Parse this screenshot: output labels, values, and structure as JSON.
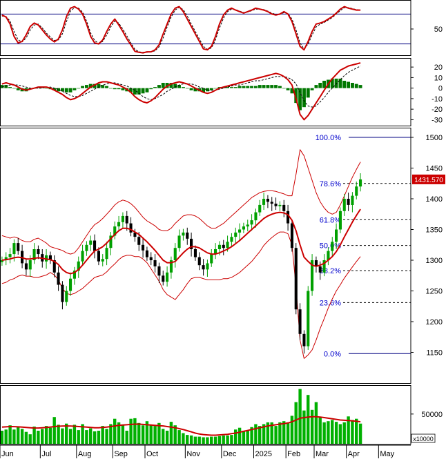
{
  "chart_data": [
    {
      "panel": "stochastic",
      "type": "line",
      "ylim": [
        0,
        100
      ],
      "tick_labels": [
        "50"
      ],
      "tick_values": [
        50
      ],
      "reference_levels": [
        80,
        20
      ],
      "series": [
        {
          "values": [
            78,
            74,
            60,
            35,
            22,
            25,
            38,
            55,
            62,
            58,
            48,
            38,
            30,
            24,
            30,
            48,
            75,
            92,
            95,
            90,
            80,
            60,
            35,
            22,
            20,
            28,
            45,
            60,
            70,
            58,
            45,
            30,
            18,
            5,
            3,
            2,
            4,
            4,
            8,
            18,
            40,
            60,
            80,
            92,
            95,
            85,
            70,
            55,
            40,
            25,
            10,
            8,
            15,
            35,
            60,
            78,
            88,
            92,
            88,
            85,
            82,
            85,
            88,
            92,
            90,
            88,
            85,
            80,
            78,
            80,
            85,
            80,
            65,
            40,
            15,
            8,
            25,
            45,
            60,
            62,
            65,
            70,
            75,
            82,
            90,
            95,
            92,
            90,
            88,
            88
          ]
        },
        {
          "values": [
            76,
            75,
            66,
            45,
            28,
            24,
            32,
            48,
            58,
            60,
            52,
            42,
            34,
            27,
            28,
            40,
            65,
            86,
            93,
            92,
            84,
            66,
            42,
            27,
            21,
            25,
            38,
            54,
            66,
            62,
            50,
            36,
            22,
            9,
            4,
            3,
            3,
            4,
            6,
            14,
            32,
            54,
            74,
            88,
            94,
            89,
            76,
            60,
            45,
            30,
            15,
            9,
            12,
            28,
            52,
            72,
            85,
            90,
            89,
            86,
            83,
            84,
            87,
            90,
            90,
            89,
            86,
            82,
            79,
            79,
            83,
            81,
            70,
            48,
            22,
            10,
            20,
            38,
            54,
            60,
            63,
            68,
            73,
            80,
            87,
            93,
            93,
            91,
            89,
            88
          ]
        }
      ]
    },
    {
      "panel": "macd",
      "type": "line",
      "ylim": [
        -33,
        26
      ],
      "tick_labels": [
        "20",
        "10",
        "0",
        "-10",
        "-20",
        "-30"
      ],
      "tick_values": [
        20,
        10,
        0,
        -10,
        -20,
        -30
      ],
      "series": [
        {
          "values": [
            4,
            5,
            4,
            3,
            1,
            -1,
            -2,
            -1,
            0,
            1,
            1,
            1,
            0,
            -2,
            -4,
            -6,
            -9,
            -11,
            -10,
            -8,
            -5,
            -2,
            1,
            3,
            5,
            6,
            6,
            5,
            4,
            3,
            1,
            -1,
            -4,
            -8,
            -11,
            -13,
            -14,
            -12,
            -9,
            -5,
            -1,
            2,
            4,
            5,
            6,
            5,
            4,
            2,
            0,
            -2,
            -4,
            -5,
            -4,
            -2,
            0,
            1,
            2,
            3,
            4,
            5,
            6,
            7,
            8,
            9,
            10,
            11,
            12,
            13,
            14,
            13,
            11,
            8,
            3,
            -10,
            -25,
            -30,
            -26,
            -20,
            -14,
            -8,
            -2,
            4,
            9,
            13,
            17,
            19,
            21,
            22,
            23,
            24
          ]
        },
        {
          "values": [
            1,
            2,
            3,
            3,
            3,
            2,
            1,
            0,
            0,
            0,
            0,
            1,
            1,
            0,
            -1,
            -3,
            -5,
            -7,
            -8,
            -8,
            -7,
            -5,
            -3,
            -1,
            1,
            3,
            4,
            5,
            5,
            4,
            3,
            2,
            0,
            -2,
            -5,
            -8,
            -10,
            -11,
            -10,
            -8,
            -6,
            -3,
            -1,
            1,
            3,
            4,
            4,
            4,
            3,
            1,
            0,
            -2,
            -2,
            -2,
            -1,
            0,
            1,
            2,
            3,
            3,
            4,
            5,
            6,
            7,
            7,
            8,
            9,
            10,
            11,
            11,
            11,
            10,
            8,
            4,
            -4,
            -12,
            -17,
            -18,
            -17,
            -13,
            -9,
            -4,
            0,
            4,
            8,
            12,
            15,
            17,
            19,
            21
          ]
        }
      ],
      "histogram": [
        3,
        3,
        1,
        0,
        -2,
        -3,
        -3,
        -1,
        0,
        1,
        1,
        0,
        -1,
        -2,
        -3,
        -3,
        -4,
        -4,
        -2,
        0,
        2,
        3,
        4,
        4,
        4,
        3,
        2,
        0,
        -1,
        -1,
        -2,
        -3,
        -4,
        -6,
        -6,
        -5,
        -4,
        -1,
        1,
        3,
        5,
        5,
        5,
        4,
        3,
        1,
        0,
        -2,
        -3,
        -3,
        -4,
        -3,
        -2,
        0,
        1,
        1,
        1,
        1,
        1,
        2,
        2,
        2,
        2,
        2,
        3,
        3,
        3,
        3,
        3,
        2,
        0,
        -2,
        -5,
        -14,
        -21,
        -18,
        -9,
        -2,
        3,
        5,
        7,
        8,
        9,
        9,
        9,
        7,
        6,
        5,
        4,
        3
      ]
    },
    {
      "panel": "price",
      "type": "line",
      "ylim": [
        1100,
        1500
      ],
      "tick_labels": [
        "1500",
        "1450",
        "1400",
        "1350",
        "1300",
        "1250",
        "1200",
        "1150"
      ],
      "tick_values": [
        1500,
        1450,
        1400,
        1350,
        1300,
        1250,
        1200,
        1150
      ],
      "close": [
        1300,
        1305,
        1310,
        1328,
        1315,
        1295,
        1285,
        1300,
        1318,
        1310,
        1298,
        1308,
        1300,
        1280,
        1260,
        1232,
        1250,
        1270,
        1283,
        1298,
        1315,
        1325,
        1332,
        1315,
        1298,
        1302,
        1320,
        1340,
        1355,
        1362,
        1372,
        1360,
        1345,
        1338,
        1325,
        1316,
        1305,
        1300,
        1290,
        1275,
        1265,
        1280,
        1300,
        1320,
        1340,
        1345,
        1335,
        1318,
        1305,
        1292,
        1285,
        1295,
        1310,
        1318,
        1325,
        1320,
        1330,
        1338,
        1345,
        1350,
        1355,
        1358,
        1365,
        1378,
        1390,
        1400,
        1395,
        1392,
        1388,
        1390,
        1380,
        1360,
        1320,
        1220,
        1180,
        1160,
        1250,
        1300,
        1290,
        1280,
        1300,
        1315,
        1330,
        1350,
        1380,
        1400,
        1390,
        1405,
        1420,
        1431.57
      ],
      "ma20": [
        1300,
        1301,
        1302,
        1304,
        1305,
        1304,
        1302,
        1302,
        1303,
        1304,
        1303,
        1302,
        1301,
        1298,
        1293,
        1285,
        1280,
        1278,
        1280,
        1285,
        1292,
        1300,
        1308,
        1315,
        1318,
        1322,
        1328,
        1335,
        1342,
        1348,
        1352,
        1352,
        1350,
        1346,
        1342,
        1336,
        1330,
        1323,
        1316,
        1308,
        1300,
        1296,
        1296,
        1298,
        1305,
        1312,
        1318,
        1322,
        1322,
        1320,
        1316,
        1312,
        1310,
        1310,
        1312,
        1315,
        1318,
        1322,
        1327,
        1332,
        1338,
        1344,
        1350,
        1356,
        1362,
        1368,
        1372,
        1375,
        1377,
        1378,
        1377,
        1374,
        1365,
        1348,
        1325,
        1305,
        1298,
        1292,
        1290,
        1292,
        1295,
        1300,
        1306,
        1314,
        1325,
        1338,
        1350,
        1362,
        1373,
        1383
      ],
      "upper_band": [
        1340,
        1338,
        1336,
        1338,
        1336,
        1332,
        1330,
        1330,
        1334,
        1336,
        1332,
        1328,
        1322,
        1320,
        1318,
        1316,
        1312,
        1310,
        1312,
        1320,
        1330,
        1340,
        1350,
        1358,
        1362,
        1368,
        1375,
        1382,
        1390,
        1395,
        1398,
        1396,
        1392,
        1386,
        1378,
        1370,
        1364,
        1360,
        1356,
        1350,
        1348,
        1348,
        1352,
        1360,
        1366,
        1372,
        1374,
        1374,
        1372,
        1368,
        1362,
        1356,
        1352,
        1352,
        1356,
        1360,
        1366,
        1372,
        1378,
        1384,
        1390,
        1396,
        1402,
        1406,
        1410,
        1412,
        1413,
        1413,
        1412,
        1410,
        1408,
        1405,
        1405,
        1440,
        1480,
        1470,
        1450,
        1430,
        1410,
        1395,
        1385,
        1378,
        1375,
        1378,
        1390,
        1405,
        1420,
        1435,
        1448,
        1460
      ],
      "lower_band": [
        1262,
        1264,
        1268,
        1270,
        1274,
        1276,
        1274,
        1274,
        1272,
        1272,
        1274,
        1276,
        1280,
        1276,
        1268,
        1254,
        1246,
        1244,
        1246,
        1250,
        1254,
        1260,
        1266,
        1272,
        1274,
        1276,
        1281,
        1288,
        1294,
        1301,
        1306,
        1308,
        1308,
        1306,
        1306,
        1302,
        1296,
        1286,
        1276,
        1266,
        1252,
        1244,
        1240,
        1236,
        1244,
        1252,
        1262,
        1270,
        1272,
        1272,
        1270,
        1268,
        1268,
        1268,
        1268,
        1270,
        1270,
        1272,
        1276,
        1280,
        1286,
        1292,
        1298,
        1306,
        1314,
        1324,
        1331,
        1337,
        1342,
        1346,
        1346,
        1343,
        1325,
        1256,
        1170,
        1140,
        1146,
        1154,
        1170,
        1189,
        1205,
        1222,
        1237,
        1250,
        1260,
        1271,
        1280,
        1289,
        1298,
        1306
      ],
      "fibonacci": [
        {
          "label": "100.0%",
          "price": 1500
        },
        {
          "label": "78.6%",
          "price": 1425
        },
        {
          "label": "61.8%",
          "price": 1366
        },
        {
          "label": "50.0%",
          "price": 1324
        },
        {
          "label": "38.2%",
          "price": 1283
        },
        {
          "label": "23.6%",
          "price": 1231
        },
        {
          "label": "0.0%",
          "price": 1148
        }
      ],
      "last_price_label": "1431.570",
      "last_price": 1431.57
    },
    {
      "panel": "volume",
      "type": "bar",
      "ylim": [
        0,
        95000
      ],
      "unit_label": "x10000",
      "tick_labels": [
        "50000"
      ],
      "tick_values": [
        50000
      ],
      "values": [
        22000,
        24000,
        31000,
        24000,
        28000,
        25000,
        20000,
        16000,
        29000,
        22000,
        25000,
        30000,
        27000,
        45000,
        32000,
        26000,
        34000,
        25000,
        32000,
        23000,
        33000,
        23000,
        26000,
        21000,
        22000,
        30000,
        25000,
        33000,
        42000,
        36000,
        31000,
        22000,
        42000,
        43000,
        35000,
        31000,
        38000,
        31000,
        30000,
        35000,
        25000,
        22000,
        37000,
        31000,
        23000,
        18000,
        15000,
        14000,
        12000,
        12000,
        11000,
        11000,
        12000,
        12000,
        13000,
        14000,
        14000,
        15000,
        24000,
        27000,
        22000,
        22000,
        28000,
        33000,
        30000,
        33000,
        36000,
        36000,
        30000,
        36000,
        38000,
        36000,
        47000,
        70000,
        92000,
        56000,
        82000,
        57000,
        70000,
        44000,
        36000,
        38000,
        40000,
        37000,
        33000,
        36000,
        46000,
        40000,
        42000,
        34000
      ],
      "ma": [
        28000,
        28500,
        29000,
        28800,
        28500,
        28000,
        27500,
        27000,
        26500,
        26500,
        27000,
        27500,
        28000,
        29000,
        29500,
        29800,
        30000,
        29800,
        29500,
        29000,
        28500,
        28000,
        27500,
        27000,
        27000,
        27500,
        28000,
        29000,
        30000,
        31000,
        31500,
        32000,
        32500,
        33000,
        33000,
        32500,
        32000,
        31500,
        31000,
        30500,
        30000,
        29000,
        28000,
        27000,
        25500,
        24000,
        22000,
        20000,
        18000,
        16500,
        15500,
        15000,
        14500,
        14500,
        15000,
        15500,
        16000,
        17000,
        18000,
        19500,
        21000,
        22500,
        24000,
        25500,
        27000,
        28500,
        30000,
        31000,
        32000,
        33000,
        34000,
        35000,
        37000,
        40000,
        43000,
        44000,
        45000,
        45500,
        45500,
        45000,
        44000,
        43000,
        42000,
        41000,
        40000,
        39500,
        39000,
        38500,
        38000,
        37000
      ]
    },
    {
      "panel": "time_axis",
      "type": "labels",
      "months": [
        {
          "label": "Jun",
          "index": 0
        },
        {
          "label": "Jul",
          "index": 10
        },
        {
          "label": "Aug",
          "index": 19
        },
        {
          "label": "Sep",
          "index": 28
        },
        {
          "label": "Oct",
          "index": 36
        },
        {
          "label": "Nov",
          "index": 46
        },
        {
          "label": "Dec",
          "index": 55
        },
        {
          "label": "2025",
          "index": 63
        },
        {
          "label": "Feb",
          "index": 71
        },
        {
          "label": "Mar",
          "index": 78
        },
        {
          "label": "Apr",
          "index": 86
        },
        {
          "label": "May",
          "index": 94
        }
      ],
      "total_bars": 102
    }
  ],
  "colors": {
    "price_up": "#00a000",
    "price_down": "#000000",
    "ma_line": "#cc0000",
    "signal_line": "#000000",
    "histogram": "#007700",
    "volume_bar": "#00b000",
    "fib_text": "#0000cc",
    "fib_line": "#000000",
    "reference_line": "#000080",
    "last_price_bg": "#cc0000",
    "panel_border": "#000000"
  }
}
